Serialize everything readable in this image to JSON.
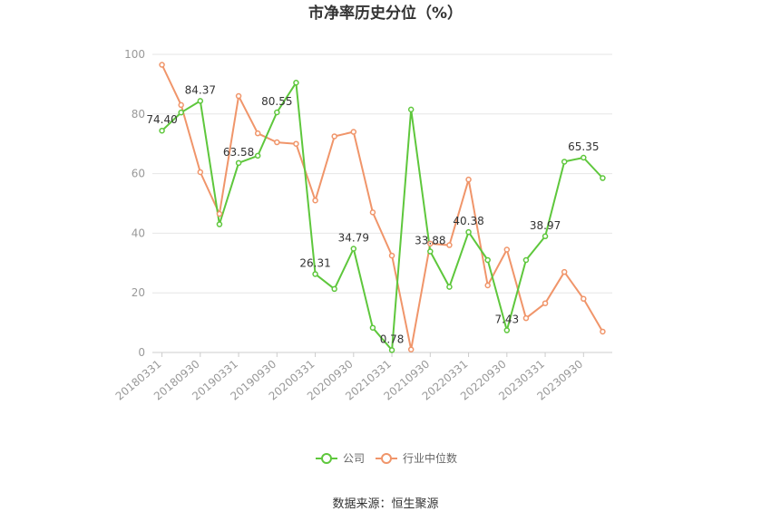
{
  "chart_data": {
    "type": "line",
    "title": "市净率历史分位（%）",
    "xlabel": "",
    "ylabel": "",
    "ylim": [
      0,
      100
    ],
    "yticks": [
      "0",
      "20",
      "40",
      "60",
      "80",
      "100"
    ],
    "grid": true,
    "legend_position": "bottom",
    "categories": [
      "20180331",
      "20180630",
      "20180930",
      "20181231",
      "20190331",
      "20190630",
      "20190930",
      "20191231",
      "20200331",
      "20200630",
      "20200930",
      "20201231",
      "20210331",
      "20210630",
      "20210930",
      "20211231",
      "20220331",
      "20220630",
      "20220930",
      "20221231",
      "20230331",
      "20230630",
      "20230930",
      "20231231"
    ],
    "tick_labels": [
      "20180331",
      "20180930",
      "20190331",
      "20190930",
      "20200331",
      "20200930",
      "20210331",
      "20210930",
      "20220331",
      "20220930",
      "20230331",
      "20230930"
    ],
    "series": [
      {
        "name": "公司",
        "color": "#5ec73c",
        "values": [
          74.4,
          80.5,
          84.37,
          43.0,
          63.58,
          66.0,
          80.55,
          90.5,
          26.31,
          21.3,
          34.79,
          8.3,
          0.78,
          81.5,
          33.88,
          22.0,
          40.38,
          31.0,
          7.43,
          31.0,
          38.97,
          64.0,
          65.35,
          58.5
        ]
      },
      {
        "name": "行业中位数",
        "color": "#f0956a",
        "values": [
          96.5,
          83.0,
          60.5,
          46.5,
          86.0,
          73.5,
          70.5,
          70.0,
          51.0,
          72.5,
          74.0,
          47.0,
          32.5,
          1.0,
          36.5,
          36.0,
          58.0,
          22.5,
          34.5,
          11.5,
          16.5,
          27.0,
          18.0,
          7.0
        ]
      }
    ],
    "data_labels": [
      {
        "index": 0,
        "text": "74.40"
      },
      {
        "index": 2,
        "text": "84.37"
      },
      {
        "index": 4,
        "text": "63.58"
      },
      {
        "index": 6,
        "text": "80.55"
      },
      {
        "index": 8,
        "text": "26.31"
      },
      {
        "index": 10,
        "text": "34.79"
      },
      {
        "index": 12,
        "text": "0.78"
      },
      {
        "index": 14,
        "text": "33.88"
      },
      {
        "index": 16,
        "text": "40.38"
      },
      {
        "index": 18,
        "text": "7.43"
      },
      {
        "index": 20,
        "text": "38.97"
      },
      {
        "index": 22,
        "text": "65.35"
      }
    ],
    "source": "数据来源：恒生聚源"
  }
}
